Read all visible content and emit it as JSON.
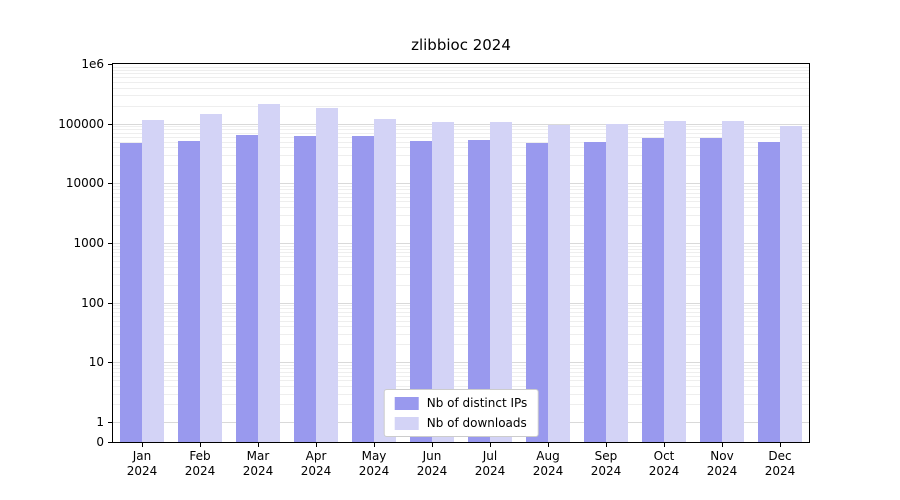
{
  "chart_data": {
    "type": "bar",
    "title": "zlibbioc 2024",
    "yscale": "symlog",
    "ylim": [
      0,
      1000000
    ],
    "yticks": [
      0,
      1,
      10,
      100,
      1000,
      10000,
      100000,
      1000000
    ],
    "ytick_labels": [
      "0",
      "1",
      "10",
      "100",
      "1000",
      "10000",
      "100000",
      "1e6"
    ],
    "grid": true,
    "legend_position": "lower center",
    "categories": [
      "Jan 2024",
      "Feb 2024",
      "Mar 2024",
      "Apr 2024",
      "May 2024",
      "Jun 2024",
      "Jul 2024",
      "Aug 2024",
      "Sep 2024",
      "Oct 2024",
      "Nov 2024",
      "Dec 2024"
    ],
    "series": [
      {
        "name": "Nb of distinct IPs",
        "color": "#9999ee",
        "values": [
          48000,
          52000,
          65000,
          63000,
          62000,
          52000,
          54000,
          48000,
          50000,
          57000,
          57000,
          50000
        ]
      },
      {
        "name": "Nb of downloads",
        "color": "#d3d3f6",
        "values": [
          115000,
          148000,
          215000,
          180000,
          122000,
          105000,
          106000,
          94000,
          100000,
          112000,
          113000,
          92000
        ]
      }
    ],
    "colors": {
      "axis": "#000000",
      "grid_major": "#d9d9d9",
      "grid_minor": "#eeeeee",
      "background": "#ffffff"
    }
  }
}
